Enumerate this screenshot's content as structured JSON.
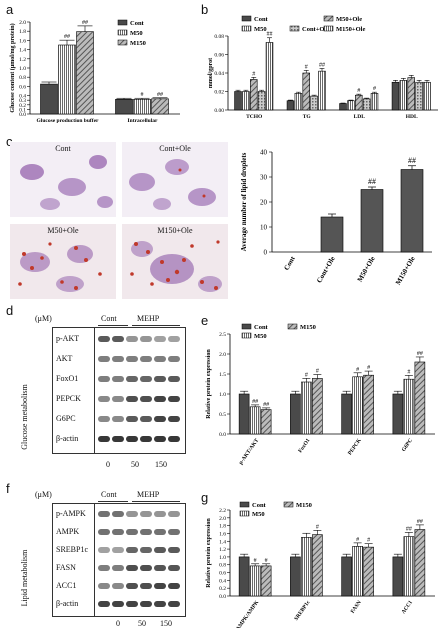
{
  "panels": {
    "a": "a",
    "b": "b",
    "c": "c",
    "d": "d",
    "e": "e",
    "f": "f",
    "g": "g"
  },
  "chart_data": [
    {
      "id": "a",
      "type": "bar",
      "ylabel": "Glucose content (µmol/mg protein)",
      "categories": [
        "Glucose production buffer",
        "Intracellular"
      ],
      "series": [
        {
          "name": "Cont",
          "values": [
            0.65,
            0.32
          ]
        },
        {
          "name": "M50",
          "values": [
            1.5,
            0.32
          ]
        },
        {
          "name": "M150",
          "values": [
            1.79,
            0.33
          ]
        }
      ],
      "annotations": [
        [
          "",
          "##",
          "##"
        ],
        [
          "",
          "#",
          "##"
        ]
      ],
      "yticks": [
        "0.0",
        "0.1",
        "0.2",
        "0.3",
        "0.4",
        "0.6",
        "0.8",
        "1.0",
        "1.2",
        "1.4",
        "1.6",
        "1.8",
        "2.0"
      ],
      "ylim": [
        0,
        2.0
      ]
    },
    {
      "id": "b",
      "type": "bar",
      "ylabel": "mmol/gprot",
      "categories": [
        "TCHO",
        "TG",
        "LDL",
        "HDL"
      ],
      "series": [
        {
          "name": "Cont",
          "values": [
            0.02,
            0.01,
            0.007,
            0.03
          ]
        },
        {
          "name": "M50",
          "values": [
            0.02,
            0.018,
            0.01,
            0.032
          ]
        },
        {
          "name": "M50+Ole",
          "values": [
            0.033,
            0.04,
            0.016,
            0.035
          ]
        },
        {
          "name": "Cont+Ole",
          "values": [
            0.02,
            0.015,
            0.012,
            0.03
          ]
        },
        {
          "name": "M150+Ole",
          "values": [
            0.073,
            0.042,
            0.018,
            0.03
          ]
        }
      ],
      "annotations": [
        [
          "",
          "",
          "#",
          "",
          "##"
        ],
        [
          "",
          "",
          "#",
          "",
          "##"
        ],
        [
          "",
          "",
          "#",
          "",
          "#"
        ],
        [
          "",
          "",
          "",
          "",
          ""
        ]
      ],
      "yticks": [
        "0.00",
        "0.02",
        "0.04",
        "0.06",
        "0.08"
      ],
      "ylim": [
        0,
        0.08
      ]
    },
    {
      "id": "c",
      "type": "bar",
      "ylabel": "Average number of lipid droplets",
      "categories": [
        "Cont",
        "Cont+Ole",
        "M50+Ole",
        "M150+Ole"
      ],
      "values": [
        0,
        14,
        25,
        33
      ],
      "errors": [
        0,
        1.2,
        1.0,
        1.5
      ],
      "annotations": [
        "",
        "",
        "##",
        "##"
      ],
      "yticks": [
        "0",
        "10",
        "20",
        "30",
        "40"
      ],
      "ylim": [
        0,
        40
      ]
    },
    {
      "id": "e",
      "type": "bar",
      "ylabel": "Relative protein expression",
      "categories": [
        "p-AKT/AKT",
        "FoxO1",
        "PEPCK",
        "G6PC"
      ],
      "series": [
        {
          "name": "Cont",
          "values": [
            1.0,
            1.0,
            1.0,
            1.0
          ]
        },
        {
          "name": "M50",
          "values": [
            0.68,
            1.3,
            1.43,
            1.37
          ]
        },
        {
          "name": "M150",
          "values": [
            0.61,
            1.39,
            1.47,
            1.8
          ]
        }
      ],
      "annotations": [
        [
          "",
          "##",
          "##"
        ],
        [
          "",
          "#",
          "#"
        ],
        [
          "",
          "#",
          "#"
        ],
        [
          "",
          "#",
          "##"
        ]
      ],
      "yticks": [
        "0.0",
        "0.5",
        "1.0",
        "1.5",
        "2.0",
        "2.5"
      ],
      "ylim": [
        0,
        2.5
      ]
    },
    {
      "id": "g",
      "type": "bar",
      "ylabel": "Relative protein expression",
      "categories": [
        "p-AMPK/AMPK",
        "SREBP1c",
        "FASN",
        "ACC1"
      ],
      "series": [
        {
          "name": "Cont",
          "values": [
            1.0,
            1.0,
            1.0,
            1.0
          ]
        },
        {
          "name": "M50",
          "values": [
            0.77,
            1.5,
            1.27,
            1.52
          ]
        },
        {
          "name": "M150",
          "values": [
            0.77,
            1.57,
            1.25,
            1.7
          ]
        }
      ],
      "annotations": [
        [
          "",
          "#",
          "#"
        ],
        [
          "",
          "",
          "#"
        ],
        [
          "",
          "#",
          "#"
        ],
        [
          "",
          "##",
          "##"
        ]
      ],
      "yticks": [
        "0.0",
        "0.2",
        "0.4",
        "0.6",
        "0.8",
        "1.0",
        "1.2",
        "1.4",
        "1.6",
        "1.8",
        "2.0",
        "2.2"
      ],
      "ylim": [
        0,
        2.2
      ]
    }
  ],
  "micrographs": [
    {
      "label": "Cont"
    },
    {
      "label": "Cont+Ole"
    },
    {
      "label": "M50+Ole"
    },
    {
      "label": "M150+Ole"
    }
  ],
  "blot_d": {
    "unit": "(μM)",
    "group_cont": "Cont",
    "group_mehp": "MEHP",
    "side": "Glucose metabolism",
    "rows": [
      "p-AKT",
      "AKT",
      "FoxO1",
      "PEPCK",
      "G6PC",
      "β-actin"
    ],
    "doses": [
      "0",
      "50",
      "150"
    ]
  },
  "blot_f": {
    "unit": "(μM)",
    "group_cont": "Cont",
    "group_mehp": "MEHP",
    "side": "Lipid metabolism",
    "rows": [
      "p-AMPK",
      "AMPK",
      "SREBP1c",
      "FASN",
      "ACC1",
      "β-actin"
    ],
    "doses": [
      "0",
      "50",
      "150"
    ]
  },
  "colors": {
    "bar_dark": "#4a4a4a",
    "bar_light": "#ffffff",
    "bar_grey": "#9a9a9a",
    "stain_purple": "#8e5aa8",
    "stain_red": "#c0392b"
  }
}
